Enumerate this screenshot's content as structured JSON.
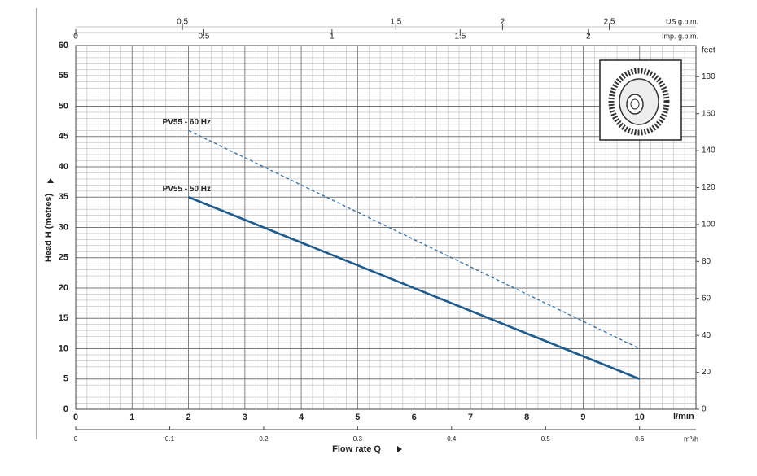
{
  "chart_data": {
    "type": "line",
    "xlabel": "Flow rate Q",
    "xunit": "l/min",
    "ylabel": "Head H (metres)",
    "x": [
      2,
      10
    ],
    "xlim": [
      0,
      11
    ],
    "xticks": [
      0,
      1,
      2,
      3,
      4,
      5,
      6,
      7,
      8,
      9,
      10
    ],
    "ylim": [
      0,
      60
    ],
    "yticks": [
      0,
      5,
      10,
      15,
      20,
      25,
      30,
      35,
      40,
      45,
      50,
      55,
      60
    ],
    "y2label": "feet",
    "y2lim": [
      0,
      196.85
    ],
    "y2ticks": [
      0,
      20,
      40,
      60,
      80,
      100,
      120,
      140,
      160,
      180
    ],
    "top_axes": [
      {
        "unit": "US g.p.m.",
        "xlim": [
          0,
          2.906
        ],
        "xticks": [
          0.5,
          1.5,
          2,
          2.5
        ]
      },
      {
        "unit": "Imp. g.p.m.",
        "xlim": [
          0,
          2.42
        ],
        "xticks": [
          0,
          0.5,
          1,
          1.5,
          2
        ]
      }
    ],
    "bottom_axis": {
      "unit": "m³/h",
      "xlim": [
        0,
        0.66
      ],
      "xticks": [
        0,
        0.1,
        0.2,
        0.3,
        0.4,
        0.5,
        0.6
      ]
    },
    "series": [
      {
        "name": "PV55 - 50 Hz",
        "color": "#1d5b8e",
        "dashed": false,
        "values": [
          35,
          5
        ]
      },
      {
        "name": "PV55 - 60 Hz",
        "color": "#3c73a6",
        "dashed": true,
        "values": [
          46,
          10
        ]
      }
    ],
    "grid": true
  }
}
